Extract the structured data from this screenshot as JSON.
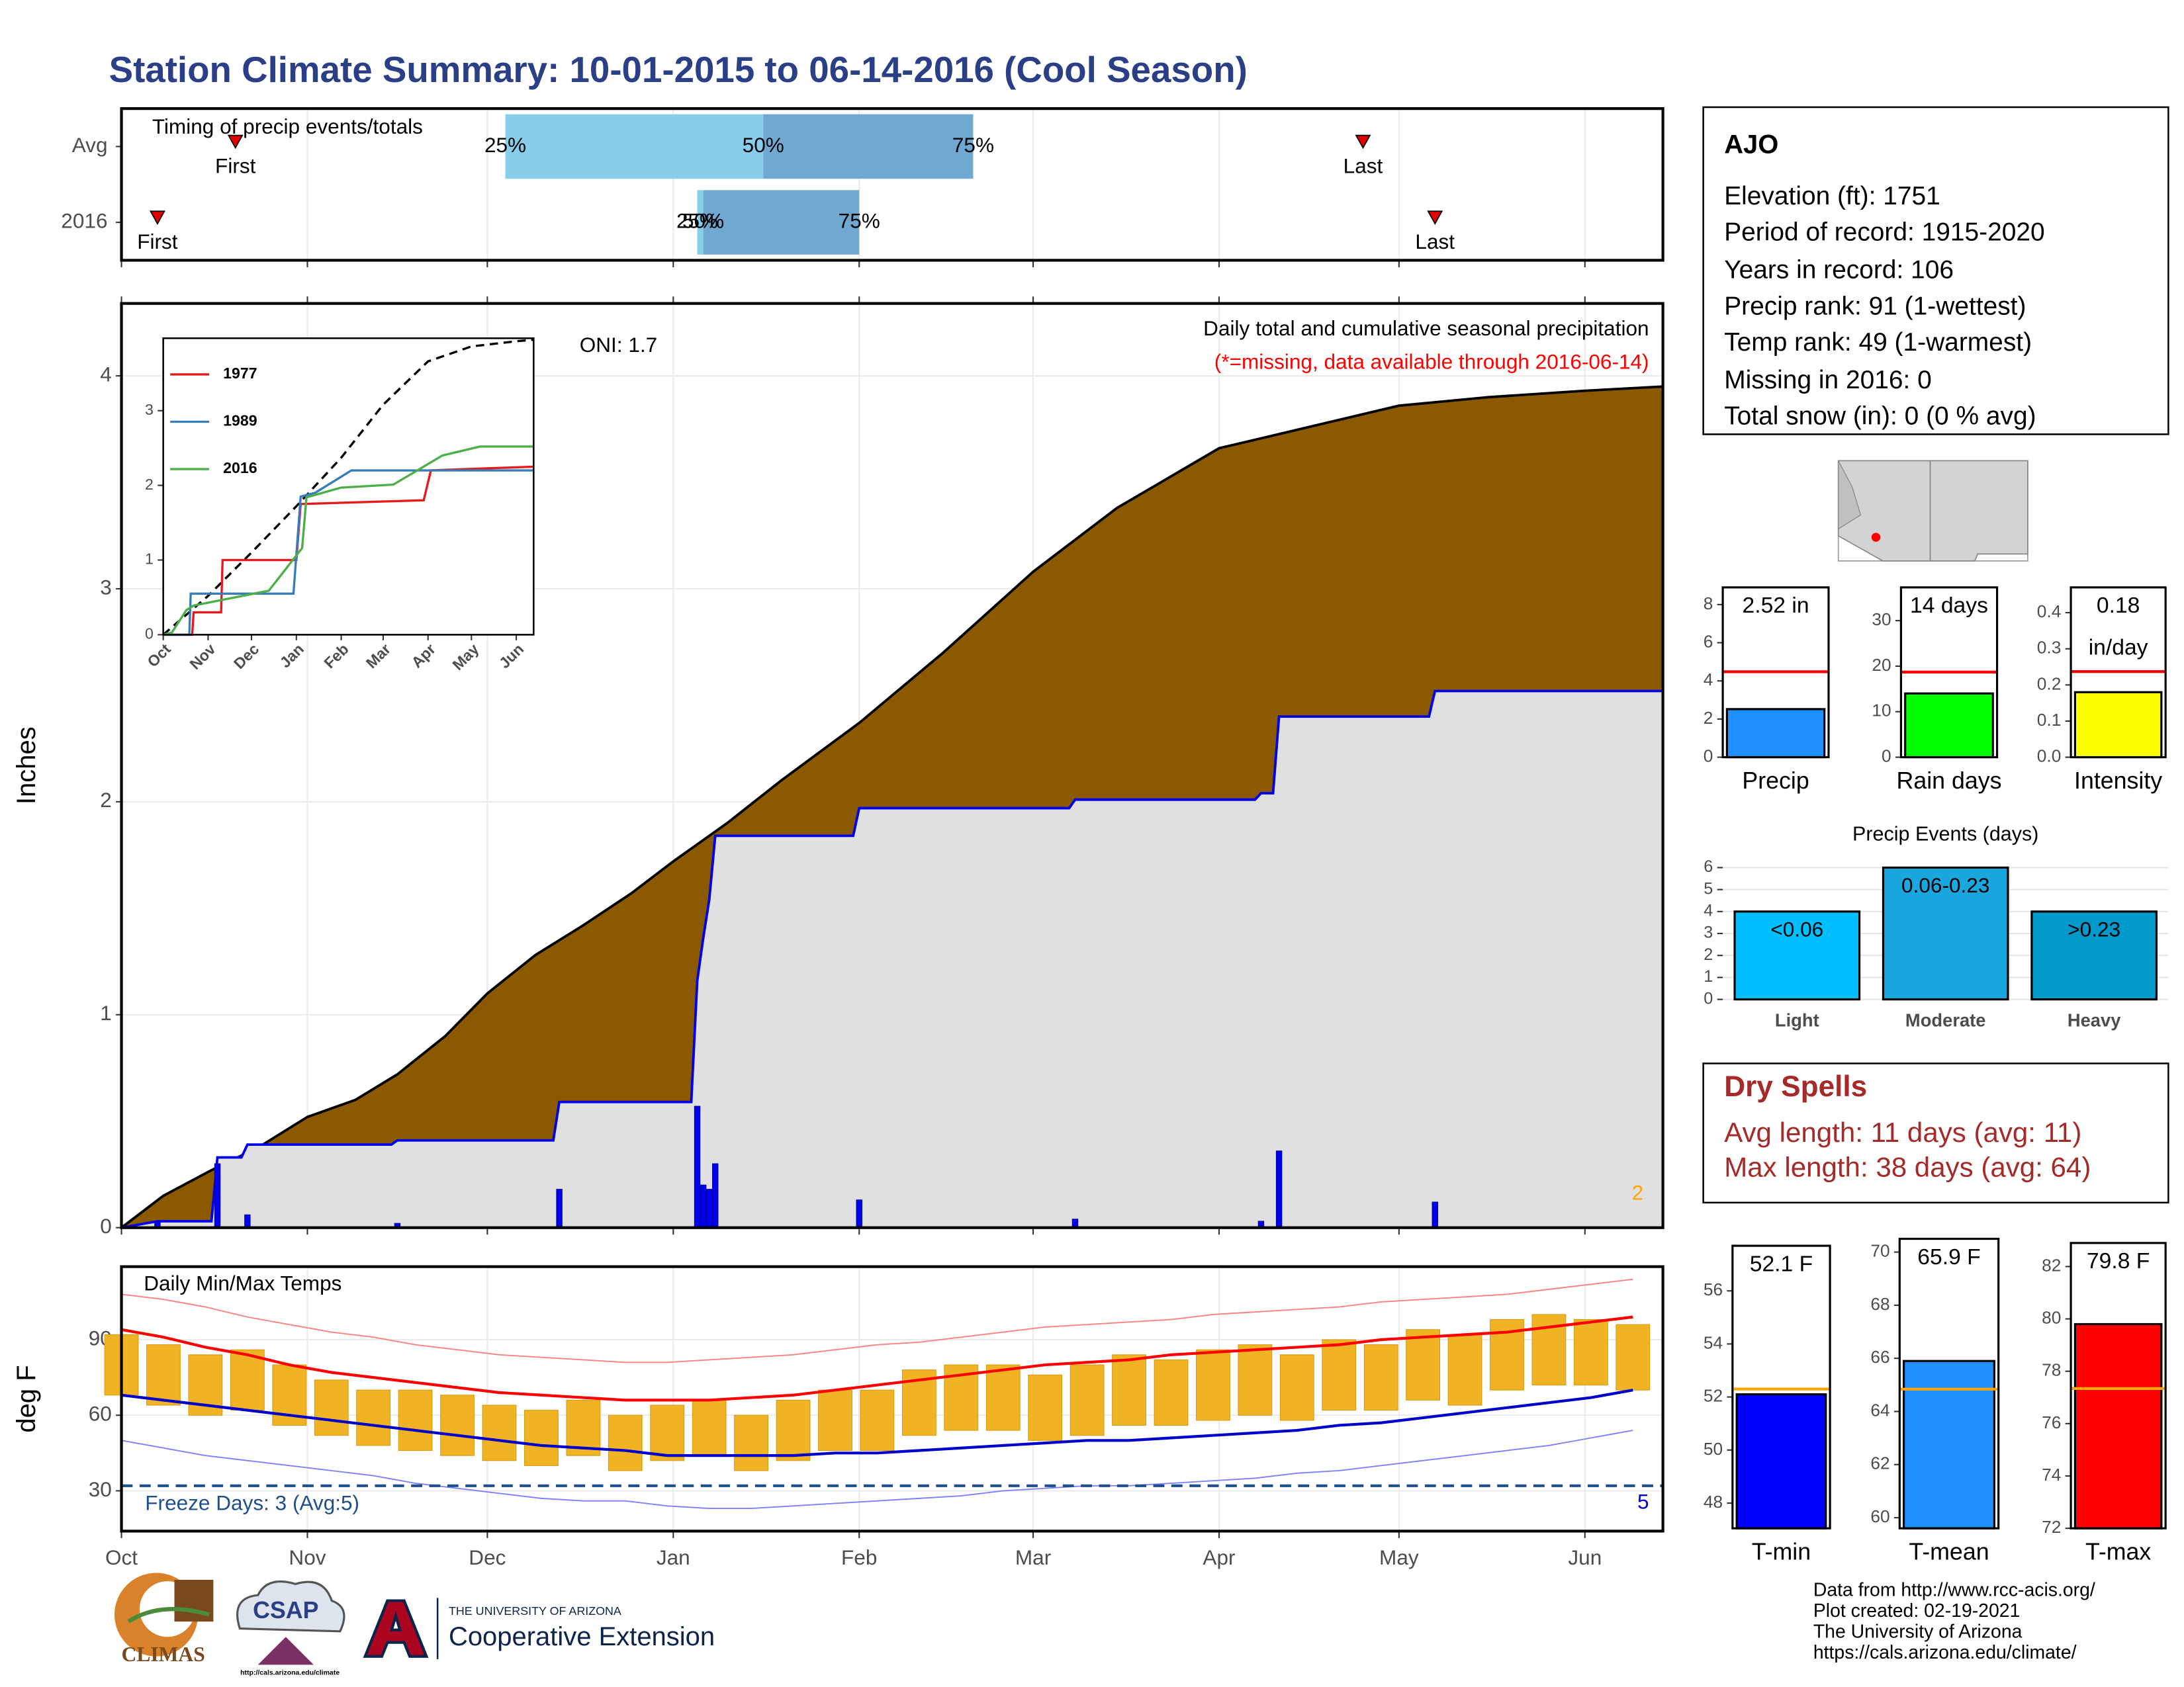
{
  "title": "Station Climate Summary: 10-01-2015 to 06-14-2016 (Cool Season)",
  "station": {
    "name": "AJO",
    "lines": [
      "Elevation (ft): 1751",
      "Period of record: 1915-2020",
      "Years in record: 106",
      "Precip rank: 91 (1-wettest)",
      "Temp rank: 49 (1-warmest)",
      "Missing in 2016: 0",
      "Total snow (in): 0 (0 % avg)"
    ]
  },
  "dry_spells": {
    "title": "Dry Spells",
    "lines": [
      "Avg length: 11 days (avg: 11)",
      "Max length: 38 days (avg: 64)"
    ]
  },
  "footer": [
    "Data from http://www.rcc-acis.org/",
    "Plot created: 02-19-2021",
    "The University of Arizona",
    "https://cals.arizona.edu/climate/"
  ],
  "logos": {
    "climas": "CLIMAS",
    "csap": "CSAP",
    "csap_url": "http://cals.arizona.edu/climate",
    "university": "THE UNIVERSITY OF ARIZONA",
    "extension": "Cooperative Extension"
  },
  "chart_data": [
    {
      "type": "timing",
      "title": "Timing of precip events/totals",
      "categories": [
        "Avg",
        "2016"
      ],
      "first": [
        19,
        6
      ],
      "q25": [
        64,
        96
      ],
      "q50": [
        107,
        97
      ],
      "q75": [
        142,
        123
      ],
      "last": [
        207,
        219
      ],
      "labels": {
        "first": "First",
        "q25": "25%",
        "q50": "50%",
        "q75": "75%",
        "last": "Last"
      },
      "colors": [
        "#87ceeb",
        "#6fa8d0"
      ],
      "marker_color": "#e00000",
      "xlim": [
        0,
        257
      ]
    },
    {
      "type": "precip",
      "ylabel": "Inches",
      "annotations": {
        "oni": "ONI: 1.7",
        "title": "Daily total and cumulative seasonal precipitation",
        "note": "(*=missing, data available through 2016-06-14)",
        "count": "2"
      },
      "average": {
        "color": "#8b5a00",
        "x": [
          0,
          7,
          15,
          23,
          31,
          39,
          46,
          54,
          61,
          69,
          77,
          85,
          92,
          101,
          110,
          123,
          137,
          152,
          166,
          183,
          198,
          213,
          228,
          244,
          257
        ],
        "values": [
          0,
          0.15,
          0.27,
          0.38,
          0.52,
          0.6,
          0.72,
          0.9,
          1.1,
          1.28,
          1.42,
          1.57,
          1.72,
          1.9,
          2.1,
          2.37,
          2.7,
          3.08,
          3.38,
          3.66,
          3.76,
          3.86,
          3.9,
          3.93,
          3.95
        ]
      },
      "season": {
        "color": "#0000ee",
        "fill": "#e0e0e0",
        "x": [
          0,
          6,
          15,
          16,
          20,
          21,
          45,
          46,
          72,
          73,
          95,
          96,
          97,
          98,
          99,
          122,
          123,
          158,
          159,
          189,
          190,
          192,
          193,
          218,
          219,
          257
        ],
        "values": [
          0,
          0.03,
          0.03,
          0.33,
          0.33,
          0.39,
          0.39,
          0.41,
          0.41,
          0.59,
          0.59,
          1.16,
          1.36,
          1.54,
          1.84,
          1.84,
          1.97,
          1.97,
          2.01,
          2.01,
          2.04,
          2.04,
          2.4,
          2.4,
          2.52,
          2.52
        ]
      },
      "daily": {
        "color": "#0000ee",
        "x": [
          6,
          16,
          21,
          46,
          73,
          96,
          97,
          98,
          99,
          123,
          159,
          190,
          193,
          219
        ],
        "values": [
          0.03,
          0.3,
          0.06,
          0.02,
          0.18,
          0.57,
          0.2,
          0.18,
          0.3,
          0.13,
          0.04,
          0.03,
          0.36,
          0.12
        ]
      },
      "xlim": [
        0,
        257
      ],
      "xticks": [
        0,
        31,
        61,
        92,
        123,
        152,
        183,
        213,
        244
      ],
      "ylim": [
        0,
        4.34
      ],
      "yticks": [
        0,
        1,
        2,
        3,
        4
      ],
      "grid": true
    },
    {
      "type": "line",
      "xlim": [
        0,
        256
      ],
      "xticks": [
        {
          "value": 0,
          "label": "Oct"
        },
        {
          "value": 31,
          "label": "Nov"
        },
        {
          "value": 61,
          "label": "Dec"
        },
        {
          "value": 92,
          "label": "Jan"
        },
        {
          "value": 123,
          "label": "Feb"
        },
        {
          "value": 152,
          "label": "Mar"
        },
        {
          "value": 183,
          "label": "Apr"
        },
        {
          "value": 213,
          "label": "May"
        },
        {
          "value": 244,
          "label": "Jun"
        }
      ],
      "ylim": [
        0,
        3.97
      ],
      "yticks": [
        0,
        1,
        2,
        3
      ],
      "series": [
        {
          "name": "1977",
          "color": "#e41a1c",
          "x": [
            0,
            20,
            21,
            40,
            41,
            92,
            95,
            180,
            185,
            256
          ],
          "values": [
            0,
            0,
            0.3,
            0.3,
            1.0,
            1.0,
            1.75,
            1.8,
            2.2,
            2.25
          ]
        },
        {
          "name": "1989",
          "color": "#377eb8",
          "x": [
            0,
            18,
            19,
            90,
            95,
            105,
            130,
            256
          ],
          "values": [
            0,
            0,
            0.55,
            0.55,
            1.85,
            1.9,
            2.2,
            2.2
          ]
        },
        {
          "name": "2016",
          "color": "#4daf4a",
          "x": [
            0,
            6,
            16,
            21,
            73,
            96,
            99,
            123,
            159,
            193,
            219,
            256
          ],
          "values": [
            0,
            0.03,
            0.33,
            0.39,
            0.59,
            1.16,
            1.84,
            1.97,
            2.01,
            2.4,
            2.52,
            2.52
          ]
        }
      ],
      "average": {
        "color": "#000000",
        "x": [
          0,
          31,
          61,
          92,
          123,
          152,
          183,
          213,
          244,
          256
        ],
        "values": [
          0,
          0.52,
          1.1,
          1.72,
          2.37,
          3.08,
          3.66,
          3.86,
          3.93,
          3.95
        ]
      }
    },
    {
      "type": "temperature",
      "title": "Daily Min/Max Temps",
      "ylabel": "deg F",
      "annotations": {
        "freeze": "Freeze Days: 3 (Avg:5)",
        "count": "5"
      },
      "x": [
        0,
        7,
        14,
        21,
        28,
        35,
        42,
        49,
        56,
        63,
        70,
        77,
        84,
        91,
        98,
        105,
        112,
        119,
        126,
        133,
        140,
        147,
        154,
        161,
        168,
        175,
        182,
        189,
        196,
        203,
        210,
        217,
        224,
        231,
        238,
        245,
        252
      ],
      "high": [
        92,
        88,
        84,
        86,
        80,
        74,
        70,
        70,
        68,
        64,
        62,
        66,
        60,
        64,
        66,
        60,
        66,
        70,
        70,
        78,
        80,
        80,
        76,
        80,
        84,
        82,
        86,
        88,
        84,
        90,
        88,
        94,
        92,
        98,
        100,
        98,
        96
      ],
      "low": [
        68,
        64,
        60,
        62,
        56,
        52,
        48,
        46,
        44,
        42,
        40,
        44,
        38,
        42,
        44,
        38,
        42,
        46,
        46,
        52,
        54,
        54,
        50,
        52,
        56,
        56,
        58,
        60,
        58,
        62,
        62,
        66,
        64,
        70,
        72,
        72,
        70
      ],
      "bar_color": "#f0b323",
      "normal_max": {
        "color": "#ff0000",
        "values": [
          94,
          91,
          87,
          84,
          80,
          77,
          75,
          73,
          71,
          69,
          68,
          67,
          66,
          66,
          66,
          67,
          68,
          70,
          72,
          74,
          76,
          78,
          80,
          81,
          82,
          84,
          85,
          86,
          87,
          88,
          90,
          91,
          92,
          93,
          95,
          97,
          99
        ]
      },
      "normal_min": {
        "color": "#0000cd",
        "values": [
          68,
          66,
          64,
          62,
          60,
          58,
          56,
          54,
          52,
          50,
          48,
          47,
          46,
          44,
          44,
          44,
          44,
          45,
          45,
          46,
          47,
          48,
          49,
          50,
          50,
          51,
          52,
          53,
          54,
          56,
          57,
          59,
          61,
          63,
          65,
          67,
          70
        ]
      },
      "record_max": {
        "color": "#ff8080",
        "values": [
          108,
          106,
          103,
          99,
          96,
          93,
          91,
          88,
          86,
          84,
          83,
          82,
          81,
          81,
          82,
          83,
          84,
          86,
          88,
          89,
          91,
          93,
          95,
          96,
          97,
          98,
          100,
          101,
          102,
          103,
          105,
          106,
          107,
          108,
          110,
          112,
          114
        ]
      },
      "record_min": {
        "color": "#8080ff",
        "values": [
          50,
          47,
          44,
          42,
          40,
          38,
          36,
          33,
          31,
          29,
          27,
          26,
          26,
          24,
          23,
          23,
          24,
          25,
          26,
          27,
          28,
          30,
          31,
          32,
          32,
          33,
          34,
          35,
          37,
          38,
          40,
          42,
          44,
          46,
          48,
          51,
          54
        ]
      },
      "freeze_line": 32,
      "freeze_color": "#1f4e8c",
      "xlim": [
        0,
        257
      ],
      "xticks": [
        {
          "value": 0,
          "label": "Oct"
        },
        {
          "value": 31,
          "label": "Nov"
        },
        {
          "value": 61,
          "label": "Dec"
        },
        {
          "value": 92,
          "label": "Jan"
        },
        {
          "value": 123,
          "label": "Feb"
        },
        {
          "value": 152,
          "label": "Mar"
        },
        {
          "value": 183,
          "label": "Apr"
        },
        {
          "value": 213,
          "label": "May"
        },
        {
          "value": 244,
          "label": "Jun"
        }
      ],
      "ylim": [
        14,
        119
      ],
      "yticks": [
        30,
        60,
        90
      ]
    },
    {
      "type": "gauge",
      "xlabel": "Precip",
      "values": [
        2.52
      ],
      "value_labels": [
        "2.52 in"
      ],
      "average": 4.48,
      "average_color": "#ff0000",
      "color": "#1e90ff",
      "ylim": [
        0,
        8.9
      ],
      "yticks": [
        0,
        2,
        4,
        6,
        8
      ]
    },
    {
      "type": "gauge",
      "xlabel": "Rain days",
      "values": [
        14
      ],
      "value_labels": [
        "14 days"
      ],
      "average": 18.7,
      "average_color": "#ff0000",
      "color": "#00ff00",
      "ylim": [
        0,
        37.3
      ],
      "yticks": [
        0,
        10,
        20,
        30
      ]
    },
    {
      "type": "gauge",
      "xlabel": "Intensity",
      "values": [
        0.18
      ],
      "value_labels": [
        "0.18"
      ],
      "unit": "in/day",
      "average": 0.237,
      "average_color": "#ff0000",
      "color": "#ffff00",
      "ylim": [
        0,
        0.47
      ],
      "yticks": [
        {
          "value": 0,
          "label": "0.0"
        },
        0.1,
        0.2,
        0.3,
        0.4
      ]
    },
    {
      "type": "bar",
      "title": "Precip Events (days)",
      "categories": [
        "Light",
        "Moderate",
        "Heavy"
      ],
      "values": [
        4,
        6,
        4
      ],
      "ranges": [
        "<0.06",
        "0.06-0.23",
        ">0.23"
      ],
      "colors": [
        "#00bfff",
        "#1aa7e0",
        "#0099cc"
      ],
      "ylim": [
        0,
        6.4
      ],
      "yticks": [
        0,
        1,
        2,
        3,
        4,
        5,
        6
      ]
    },
    {
      "type": "gauge",
      "xlabel": "T-min",
      "values": [
        52.1
      ],
      "value_labels": [
        "52.1 F"
      ],
      "average": 52.3,
      "average_color": "#ffa500",
      "color": "#0000ff",
      "ylim": [
        47.05,
        57.7
      ],
      "yticks": [
        48,
        50,
        52,
        54,
        56
      ]
    },
    {
      "type": "gauge",
      "xlabel": "T-mean",
      "values": [
        65.9
      ],
      "value_labels": [
        "65.9 F"
      ],
      "average": 64.84,
      "average_color": "#ffa500",
      "color": "#1e90ff",
      "ylim": [
        59.6,
        70.5
      ],
      "yticks": [
        60,
        62,
        64,
        66,
        68,
        70
      ]
    },
    {
      "type": "gauge",
      "xlabel": "T-max",
      "values": [
        79.8
      ],
      "value_labels": [
        "79.8 F"
      ],
      "average": 77.34,
      "average_color": "#ffa500",
      "color": "#ff0000",
      "ylim": [
        72,
        82.9
      ],
      "yticks": [
        72,
        74,
        76,
        78,
        80,
        82
      ]
    }
  ]
}
